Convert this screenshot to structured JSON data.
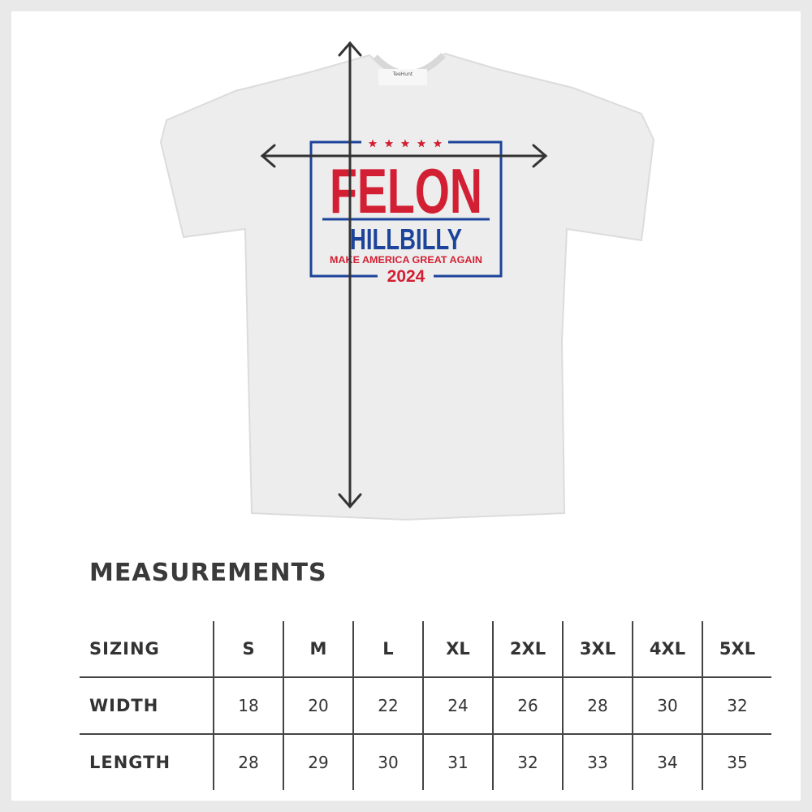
{
  "product": {
    "design": {
      "line1": "FELON",
      "line2": "HILLBILLY",
      "line3": "MAKE AMERICA GREAT AGAIN",
      "line4": "2024",
      "stars": 5,
      "colors": {
        "red": "#d21f33",
        "blue": "#1c449a"
      }
    },
    "tag_logo": "TeeHunt",
    "shirt_color": "#ededed"
  },
  "measurements": {
    "title": "MEASUREMENTS",
    "header_label": "SIZING",
    "sizes": [
      "S",
      "M",
      "L",
      "XL",
      "2XL",
      "3XL",
      "4XL",
      "5XL"
    ],
    "rows": [
      {
        "label": "WIDTH",
        "values": [
          "18",
          "20",
          "22",
          "24",
          "26",
          "28",
          "30",
          "32"
        ]
      },
      {
        "label": "LENGTH",
        "values": [
          "28",
          "29",
          "30",
          "31",
          "32",
          "33",
          "34",
          "35"
        ]
      }
    ]
  }
}
